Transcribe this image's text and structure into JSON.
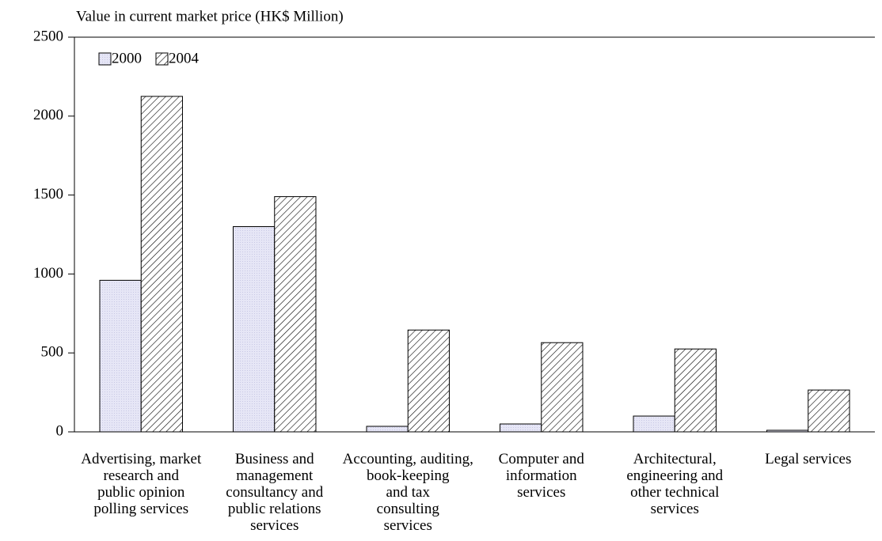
{
  "chart_data": {
    "type": "bar",
    "y_axis_label": "Value in current market price (HK$ Million)",
    "categories": [
      "Advertising, market\nresearch and\npublic opinion\npolling services",
      "Business and\nmanagement\nconsultancy and\npublic relations\nservices",
      "Accounting, auditing,\nbook-keeping\nand tax\nconsulting\nservices",
      "Computer and\ninformation\nservices",
      "Architectural,\nengineering and\nother technical\nservices",
      "Legal services"
    ],
    "series": [
      {
        "name": "2000",
        "color": "#e6e6f6",
        "values": [
          960,
          1300,
          35,
          50,
          100,
          10
        ]
      },
      {
        "name": "2004",
        "color": "hatch",
        "values": [
          2125,
          1490,
          645,
          565,
          525,
          265
        ]
      }
    ],
    "ylim": [
      0,
      2500
    ],
    "yticks": [
      0,
      500,
      1000,
      1500,
      2000,
      2500
    ],
    "legend": "upper left",
    "grid": false
  }
}
